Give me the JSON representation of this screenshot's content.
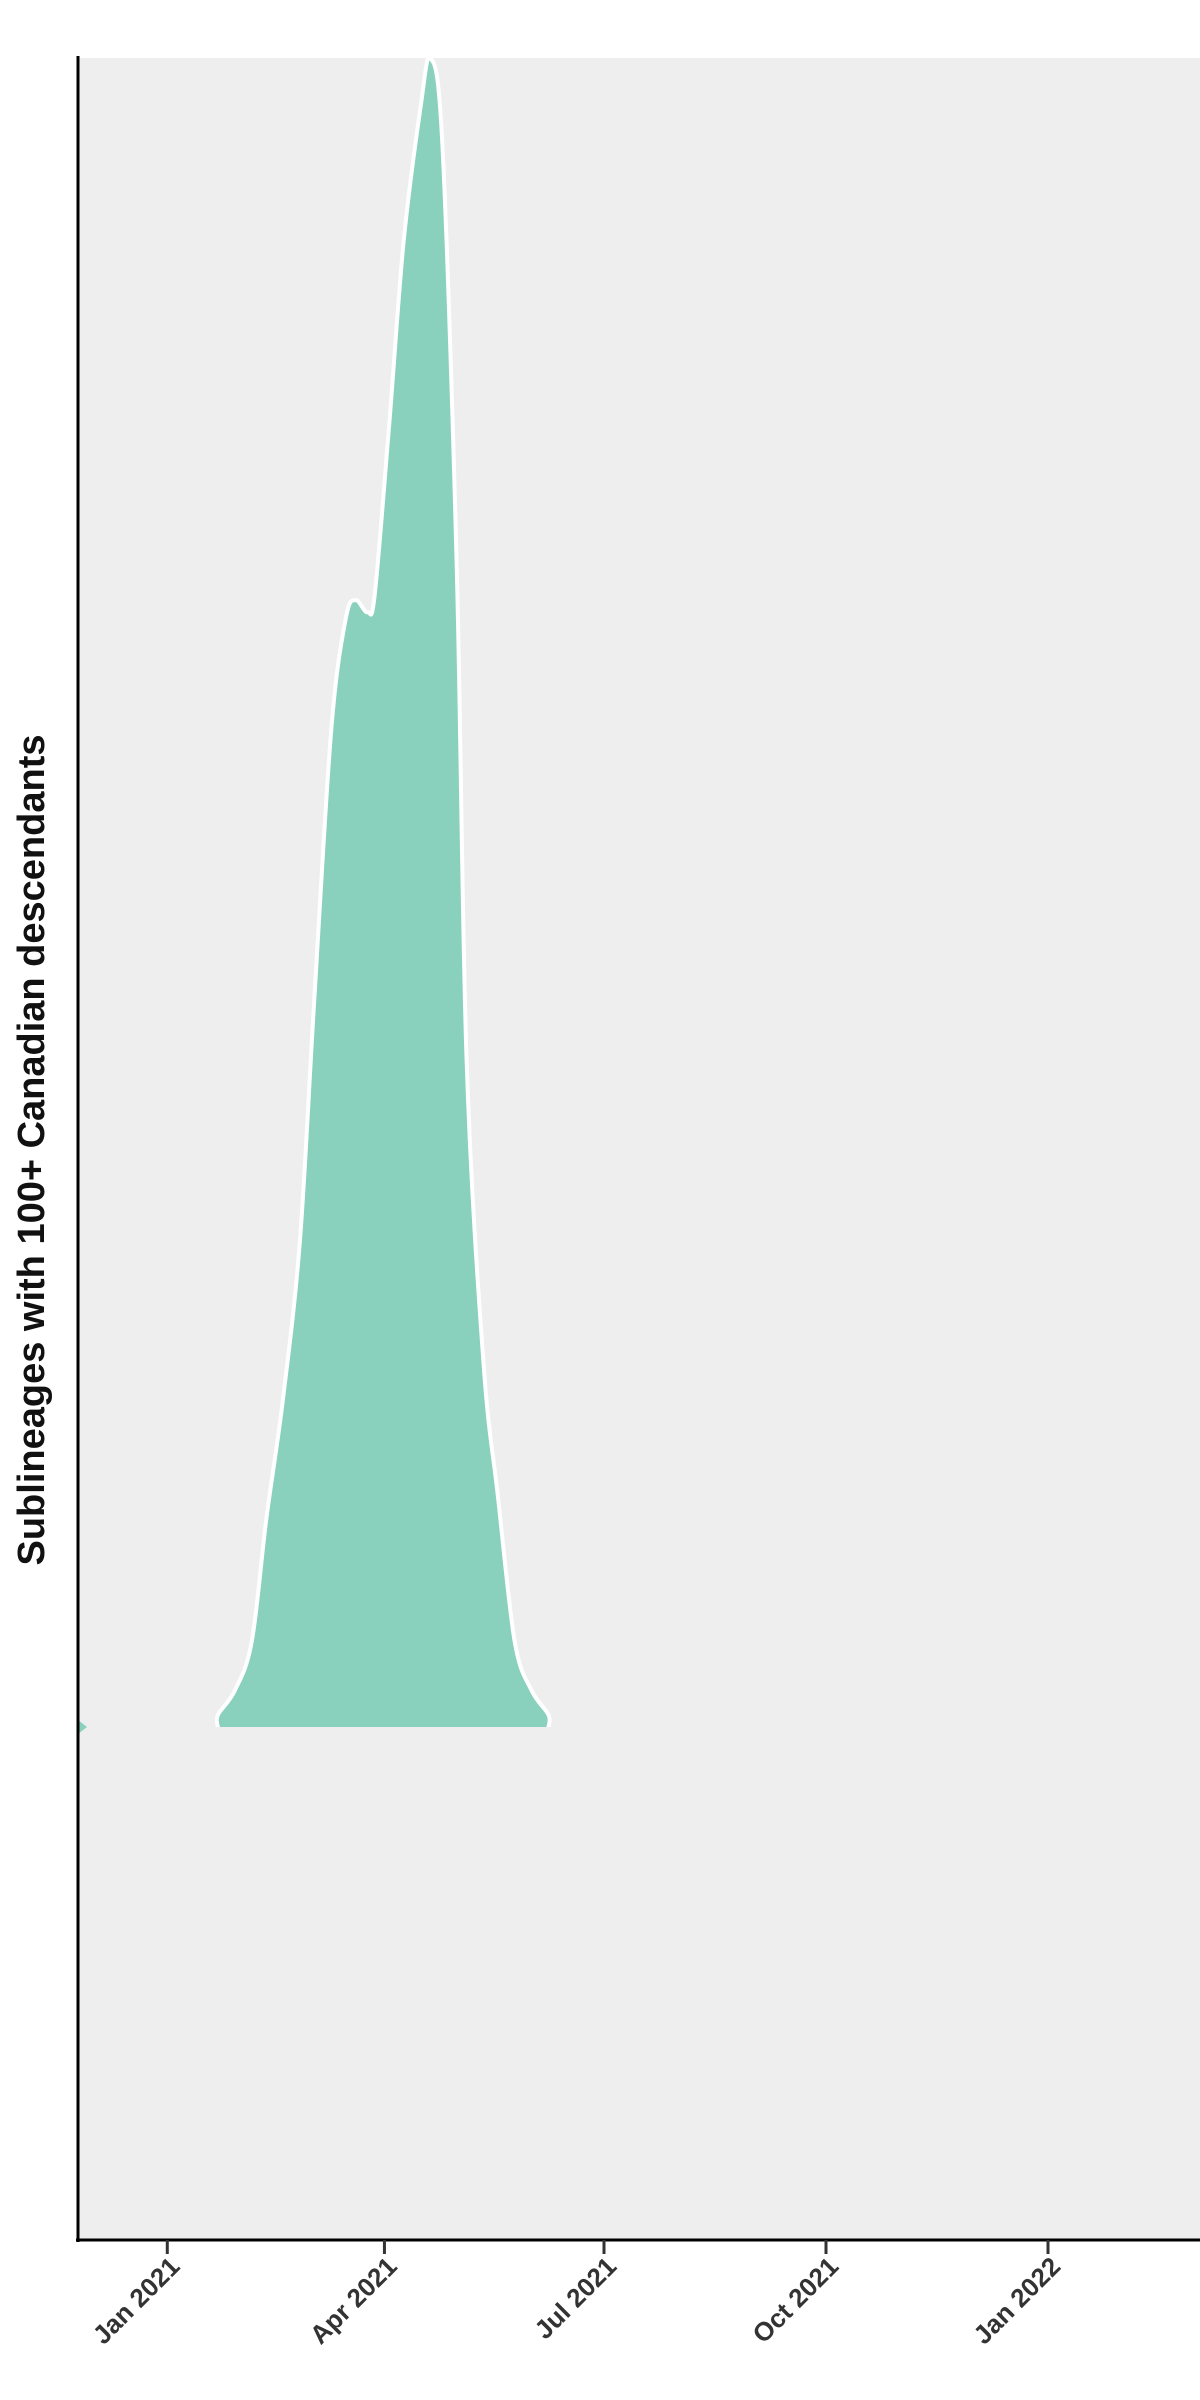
{
  "chart_data": {
    "type": "area",
    "ylabel": "Sublineages with 100+ Canadian descendants",
    "xlim": [
      "2020-11-25",
      "2022-03-05"
    ],
    "x_ticks": [
      {
        "date": "2021-01-01",
        "label": "Jan 2021"
      },
      {
        "date": "2021-04-01",
        "label": "Apr 2021"
      },
      {
        "date": "2021-07-01",
        "label": "Jul 2021"
      },
      {
        "date": "2021-10-01",
        "label": "Oct 2021"
      },
      {
        "date": "2022-01-01",
        "label": "Jan 2022"
      }
    ],
    "grid": false,
    "colors": {
      "fill": "#8ad1bd",
      "outline": "#ffffff",
      "panel": "#eeeeee",
      "axis": "#000000"
    },
    "series": [
      {
        "points": [
          {
            "x": "2021-01-22",
            "y": 0.0
          },
          {
            "x": "2021-01-22",
            "y": 0.01
          },
          {
            "x": "2021-01-29",
            "y": 0.03
          },
          {
            "x": "2021-02-05",
            "y": 0.07
          },
          {
            "x": "2021-02-11",
            "y": 0.17
          },
          {
            "x": "2021-02-18",
            "y": 0.27
          },
          {
            "x": "2021-02-25",
            "y": 0.4
          },
          {
            "x": "2021-03-03",
            "y": 0.6
          },
          {
            "x": "2021-03-10",
            "y": 0.82
          },
          {
            "x": "2021-03-16",
            "y": 0.91
          },
          {
            "x": "2021-03-20",
            "y": 0.925
          },
          {
            "x": "2021-03-25",
            "y": 0.915
          },
          {
            "x": "2021-03-28",
            "y": 0.93
          },
          {
            "x": "2021-04-03",
            "y": 1.07
          },
          {
            "x": "2021-04-09",
            "y": 1.22
          },
          {
            "x": "2021-04-16",
            "y": 1.33
          },
          {
            "x": "2021-04-20",
            "y": 1.37
          },
          {
            "x": "2021-04-25",
            "y": 1.3
          },
          {
            "x": "2021-05-01",
            "y": 0.95
          },
          {
            "x": "2021-05-05",
            "y": 0.55
          },
          {
            "x": "2021-05-12",
            "y": 0.3
          },
          {
            "x": "2021-05-18",
            "y": 0.19
          },
          {
            "x": "2021-05-25",
            "y": 0.07
          },
          {
            "x": "2021-06-01",
            "y": 0.03
          },
          {
            "x": "2021-06-08",
            "y": 0.01
          },
          {
            "x": "2021-06-08",
            "y": 0.0
          }
        ],
        "outlier": {
          "x": "2020-11-25",
          "y": 0.0
        }
      }
    ]
  }
}
